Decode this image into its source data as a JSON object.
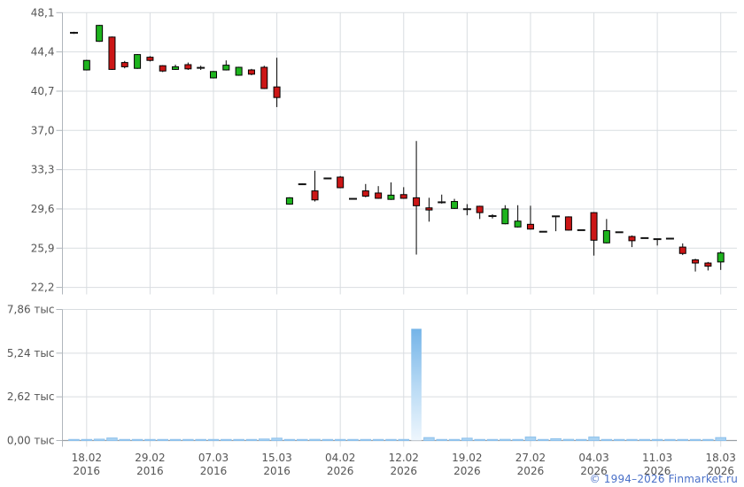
{
  "watermark": {
    "label": "© 1994–2026 Finmarket.ru",
    "color": "#4a70c8"
  },
  "grid": {
    "line_color": "#d9dde1",
    "axis_color": "#9aa0a6",
    "tick_color": "#b0b6bc",
    "label_color": "#555555"
  },
  "x_axis": {
    "tick_candle_indices": [
      1,
      6,
      11,
      16,
      21,
      26,
      31,
      36,
      41,
      46,
      51
    ],
    "tick_labels": [
      [
        "18.02",
        "2016"
      ],
      [
        "29.02",
        "2016"
      ],
      [
        "07.03",
        "2016"
      ],
      [
        "15.03",
        "2016"
      ],
      [
        "04.02",
        "2026"
      ],
      [
        "12.02",
        "2026"
      ],
      [
        "19.02",
        "2026"
      ],
      [
        "27.02",
        "2026"
      ],
      [
        "04.03",
        "2026"
      ],
      [
        "11.03",
        "2026"
      ],
      [
        "18.03",
        "2026"
      ]
    ]
  },
  "chart_data": [
    {
      "type": "candlestick",
      "title": "",
      "xlabel": "",
      "ylabel": "",
      "legend": "none",
      "grid": "on",
      "ylim": [
        22.2,
        48.1
      ],
      "y_axis": {
        "tick_values": [
          48.1,
          44.4,
          40.7,
          37.0,
          33.3,
          29.6,
          25.9,
          22.2
        ],
        "tick_labels": [
          "48,1",
          "44,4",
          "40,7",
          "37,0",
          "33,3",
          "29,6",
          "25,9",
          "22,2"
        ]
      },
      "colors": {
        "up": "#1eb41e",
        "down": "#cc1616",
        "outline": "#000000",
        "doji": "#111111"
      },
      "candles": [
        {
          "o": 46.2,
          "h": 46.3,
          "l": 46.1,
          "c": 46.2
        },
        {
          "o": 42.7,
          "h": 43.65,
          "l": 42.65,
          "c": 43.6
        },
        {
          "o": 45.4,
          "h": 46.95,
          "l": 45.35,
          "c": 46.9
        },
        {
          "o": 45.8,
          "h": 45.85,
          "l": 42.7,
          "c": 42.75
        },
        {
          "o": 43.4,
          "h": 43.55,
          "l": 42.85,
          "c": 43.0
        },
        {
          "o": 42.85,
          "h": 44.2,
          "l": 42.8,
          "c": 44.15
        },
        {
          "o": 43.9,
          "h": 44.0,
          "l": 43.5,
          "c": 43.6
        },
        {
          "o": 43.1,
          "h": 43.15,
          "l": 42.5,
          "c": 42.6
        },
        {
          "o": 42.75,
          "h": 43.2,
          "l": 42.7,
          "c": 43.0
        },
        {
          "o": 43.2,
          "h": 43.4,
          "l": 42.7,
          "c": 42.8
        },
        {
          "o": 42.9,
          "h": 43.1,
          "l": 42.7,
          "c": 42.9
        },
        {
          "o": 41.95,
          "h": 42.6,
          "l": 41.9,
          "c": 42.55
        },
        {
          "o": 42.7,
          "h": 43.6,
          "l": 42.65,
          "c": 43.15
        },
        {
          "o": 42.2,
          "h": 43.0,
          "l": 42.15,
          "c": 42.95
        },
        {
          "o": 42.7,
          "h": 42.8,
          "l": 42.2,
          "c": 42.3
        },
        {
          "o": 42.95,
          "h": 43.1,
          "l": 40.9,
          "c": 40.95
        },
        {
          "o": 41.1,
          "h": 43.85,
          "l": 39.2,
          "c": 40.1
        },
        {
          "o": 30.05,
          "h": 30.7,
          "l": 30.0,
          "c": 30.65
        },
        {
          "o": 31.9,
          "h": 32.0,
          "l": 31.85,
          "c": 31.95
        },
        {
          "o": 31.3,
          "h": 33.2,
          "l": 30.3,
          "c": 30.45
        },
        {
          "o": 32.5,
          "h": 32.55,
          "l": 32.4,
          "c": 32.45
        },
        {
          "o": 32.6,
          "h": 32.7,
          "l": 31.55,
          "c": 31.6
        },
        {
          "o": 30.55,
          "h": 30.6,
          "l": 30.5,
          "c": 30.55
        },
        {
          "o": 31.3,
          "h": 31.95,
          "l": 30.7,
          "c": 30.8
        },
        {
          "o": 31.1,
          "h": 31.75,
          "l": 30.55,
          "c": 30.6
        },
        {
          "o": 30.5,
          "h": 32.1,
          "l": 30.45,
          "c": 30.9
        },
        {
          "o": 30.95,
          "h": 31.65,
          "l": 30.55,
          "c": 30.6
        },
        {
          "o": 30.65,
          "h": 36.0,
          "l": 25.3,
          "c": 29.9
        },
        {
          "o": 29.7,
          "h": 30.65,
          "l": 28.4,
          "c": 29.5
        },
        {
          "o": 30.25,
          "h": 30.95,
          "l": 30.1,
          "c": 30.2
        },
        {
          "o": 29.65,
          "h": 30.55,
          "l": 29.6,
          "c": 30.3
        },
        {
          "o": 29.6,
          "h": 30.05,
          "l": 29.0,
          "c": 29.55
        },
        {
          "o": 29.85,
          "h": 29.9,
          "l": 28.65,
          "c": 29.25
        },
        {
          "o": 28.95,
          "h": 29.1,
          "l": 28.7,
          "c": 28.9
        },
        {
          "o": 28.2,
          "h": 29.95,
          "l": 28.15,
          "c": 29.6
        },
        {
          "o": 27.9,
          "h": 29.95,
          "l": 27.85,
          "c": 28.45
        },
        {
          "o": 28.15,
          "h": 29.9,
          "l": 27.65,
          "c": 27.7
        },
        {
          "o": 27.45,
          "h": 27.5,
          "l": 27.4,
          "c": 27.45
        },
        {
          "o": 28.9,
          "h": 28.95,
          "l": 27.5,
          "c": 28.9
        },
        {
          "o": 28.85,
          "h": 28.9,
          "l": 27.55,
          "c": 27.6
        },
        {
          "o": 27.6,
          "h": 27.65,
          "l": 27.55,
          "c": 27.6
        },
        {
          "o": 29.25,
          "h": 29.3,
          "l": 25.2,
          "c": 26.65
        },
        {
          "o": 26.4,
          "h": 28.65,
          "l": 26.35,
          "c": 27.55
        },
        {
          "o": 27.4,
          "h": 27.45,
          "l": 27.35,
          "c": 27.4
        },
        {
          "o": 27.0,
          "h": 27.1,
          "l": 26.0,
          "c": 26.6
        },
        {
          "o": 26.85,
          "h": 26.9,
          "l": 26.8,
          "c": 26.85
        },
        {
          "o": 26.75,
          "h": 26.8,
          "l": 26.15,
          "c": 26.75
        },
        {
          "o": 26.8,
          "h": 26.85,
          "l": 26.75,
          "c": 26.8
        },
        {
          "o": 26.0,
          "h": 26.35,
          "l": 25.25,
          "c": 25.4
        },
        {
          "o": 24.8,
          "h": 24.9,
          "l": 23.7,
          "c": 24.5
        },
        {
          "o": 24.5,
          "h": 24.6,
          "l": 23.8,
          "c": 24.2
        },
        {
          "o": 24.6,
          "h": 25.6,
          "l": 23.85,
          "c": 25.45
        }
      ]
    },
    {
      "type": "bar",
      "name": "volume",
      "title": "",
      "grid": "on",
      "ylim": [
        0,
        7860
      ],
      "y_axis": {
        "tick_values": [
          7860,
          5240,
          2620,
          0
        ],
        "tick_labels": [
          "7,86 тыс",
          "5,24 тыс",
          "2,62 тыс",
          "0,00 тыс"
        ]
      },
      "colors": {
        "bar": "#a9d2f2",
        "bar_edge": "#8fc2ec",
        "spike_top": "#74b4e8",
        "spike_mid": "#bcdcf5",
        "spike_bottom": "#eef6fd"
      },
      "values": [
        30,
        60,
        80,
        150,
        40,
        55,
        45,
        40,
        35,
        40,
        30,
        50,
        45,
        40,
        35,
        90,
        140,
        60,
        30,
        70,
        30,
        50,
        30,
        40,
        45,
        40,
        45,
        6700,
        175,
        50,
        60,
        140,
        60,
        40,
        70,
        60,
        210,
        50,
        105,
        70,
        50,
        210,
        60,
        40,
        50,
        40,
        45,
        40,
        55,
        50,
        45,
        175
      ]
    }
  ]
}
